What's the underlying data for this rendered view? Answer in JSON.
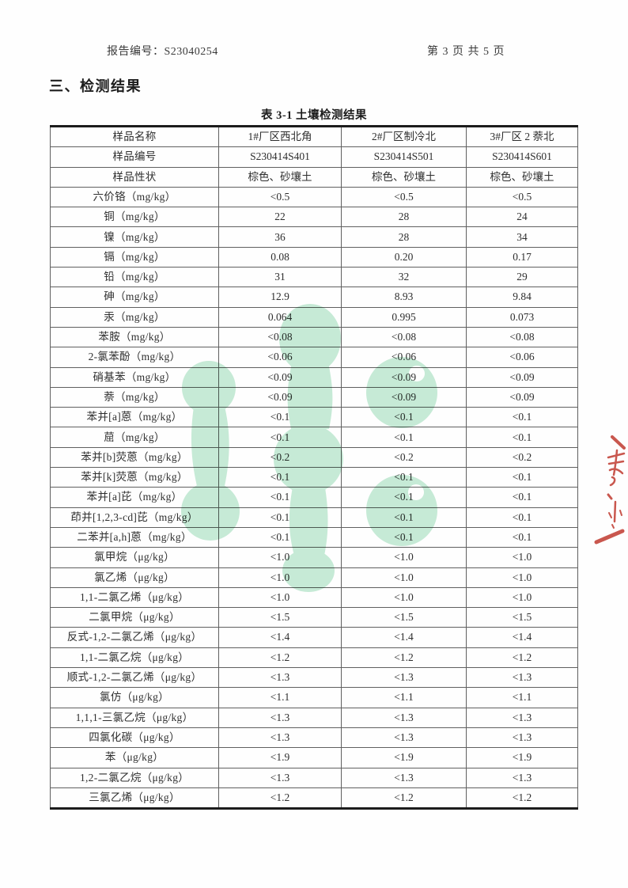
{
  "page": {
    "report_no": "报告编号：S23040254",
    "page_indicator": "第 3 页 共 5 页",
    "section_title": "三、检测结果",
    "table_caption": "表 3-1 土壤检测结果"
  },
  "table": {
    "header_rows": [
      {
        "label": "样品名称",
        "values": [
          "1#厂区西北角",
          "2#厂区制冷北",
          "3#厂区 2 萘北"
        ]
      },
      {
        "label": "样品编号",
        "values": [
          "S230414S401",
          "S230414S501",
          "S230414S601"
        ]
      },
      {
        "label": "样品性状",
        "values": [
          "棕色、砂壤土",
          "棕色、砂壤土",
          "棕色、砂壤土"
        ]
      }
    ],
    "rows": [
      {
        "label": "六价铬（mg/kg）",
        "values": [
          "<0.5",
          "<0.5",
          "<0.5"
        ]
      },
      {
        "label": "铜（mg/kg）",
        "values": [
          "22",
          "28",
          "24"
        ]
      },
      {
        "label": "镍（mg/kg）",
        "values": [
          "36",
          "28",
          "34"
        ]
      },
      {
        "label": "镉（mg/kg）",
        "values": [
          "0.08",
          "0.20",
          "0.17"
        ]
      },
      {
        "label": "铅（mg/kg）",
        "values": [
          "31",
          "32",
          "29"
        ]
      },
      {
        "label": "砷（mg/kg）",
        "values": [
          "12.9",
          "8.93",
          "9.84"
        ]
      },
      {
        "label": "汞（mg/kg）",
        "values": [
          "0.064",
          "0.995",
          "0.073"
        ]
      },
      {
        "label": "苯胺（mg/kg）",
        "values": [
          "<0.08",
          "<0.08",
          "<0.08"
        ]
      },
      {
        "label": "2-氯苯酚（mg/kg）",
        "values": [
          "<0.06",
          "<0.06",
          "<0.06"
        ]
      },
      {
        "label": "硝基苯（mg/kg）",
        "values": [
          "<0.09",
          "<0.09",
          "<0.09"
        ]
      },
      {
        "label": "萘（mg/kg）",
        "values": [
          "<0.09",
          "<0.09",
          "<0.09"
        ]
      },
      {
        "label": "苯并[a]蒽（mg/kg）",
        "values": [
          "<0.1",
          "<0.1",
          "<0.1"
        ]
      },
      {
        "label": "䓛（mg/kg）",
        "values": [
          "<0.1",
          "<0.1",
          "<0.1"
        ]
      },
      {
        "label": "苯并[b]荧蒽（mg/kg）",
        "values": [
          "<0.2",
          "<0.2",
          "<0.2"
        ]
      },
      {
        "label": "苯并[k]荧蒽（mg/kg）",
        "values": [
          "<0.1",
          "<0.1",
          "<0.1"
        ]
      },
      {
        "label": "苯并[a]芘（mg/kg）",
        "values": [
          "<0.1",
          "<0.1",
          "<0.1"
        ]
      },
      {
        "label": "茚并[1,2,3-cd]芘（mg/kg）",
        "values": [
          "<0.1",
          "<0.1",
          "<0.1"
        ]
      },
      {
        "label": "二苯并[a,h]蒽（mg/kg）",
        "values": [
          "<0.1",
          "<0.1",
          "<0.1"
        ]
      },
      {
        "label": "氯甲烷（μg/kg）",
        "values": [
          "<1.0",
          "<1.0",
          "<1.0"
        ]
      },
      {
        "label": "氯乙烯（μg/kg）",
        "values": [
          "<1.0",
          "<1.0",
          "<1.0"
        ]
      },
      {
        "label": "1,1-二氯乙烯（μg/kg）",
        "values": [
          "<1.0",
          "<1.0",
          "<1.0"
        ]
      },
      {
        "label": "二氯甲烷（μg/kg）",
        "values": [
          "<1.5",
          "<1.5",
          "<1.5"
        ]
      },
      {
        "label": "反式-1,2-二氯乙烯（μg/kg）",
        "values": [
          "<1.4",
          "<1.4",
          "<1.4"
        ]
      },
      {
        "label": "1,1-二氯乙烷（μg/kg）",
        "values": [
          "<1.2",
          "<1.2",
          "<1.2"
        ]
      },
      {
        "label": "顺式-1,2-二氯乙烯（μg/kg）",
        "values": [
          "<1.3",
          "<1.3",
          "<1.3"
        ]
      },
      {
        "label": "氯仿（μg/kg）",
        "values": [
          "<1.1",
          "<1.1",
          "<1.1"
        ]
      },
      {
        "label": "1,1,1-三氯乙烷（μg/kg）",
        "values": [
          "<1.3",
          "<1.3",
          "<1.3"
        ]
      },
      {
        "label": "四氯化碳（μg/kg）",
        "values": [
          "<1.3",
          "<1.3",
          "<1.3"
        ]
      },
      {
        "label": "苯（μg/kg）",
        "values": [
          "<1.9",
          "<1.9",
          "<1.9"
        ]
      },
      {
        "label": "1,2-二氯乙烷（μg/kg）",
        "values": [
          "<1.3",
          "<1.3",
          "<1.3"
        ]
      },
      {
        "label": "三氯乙烯（μg/kg）",
        "values": [
          "<1.2",
          "<1.2",
          "<1.2"
        ]
      }
    ]
  },
  "watermark": {
    "color": "#c7ebd7"
  },
  "stamp": {
    "color": "#c4453a"
  }
}
